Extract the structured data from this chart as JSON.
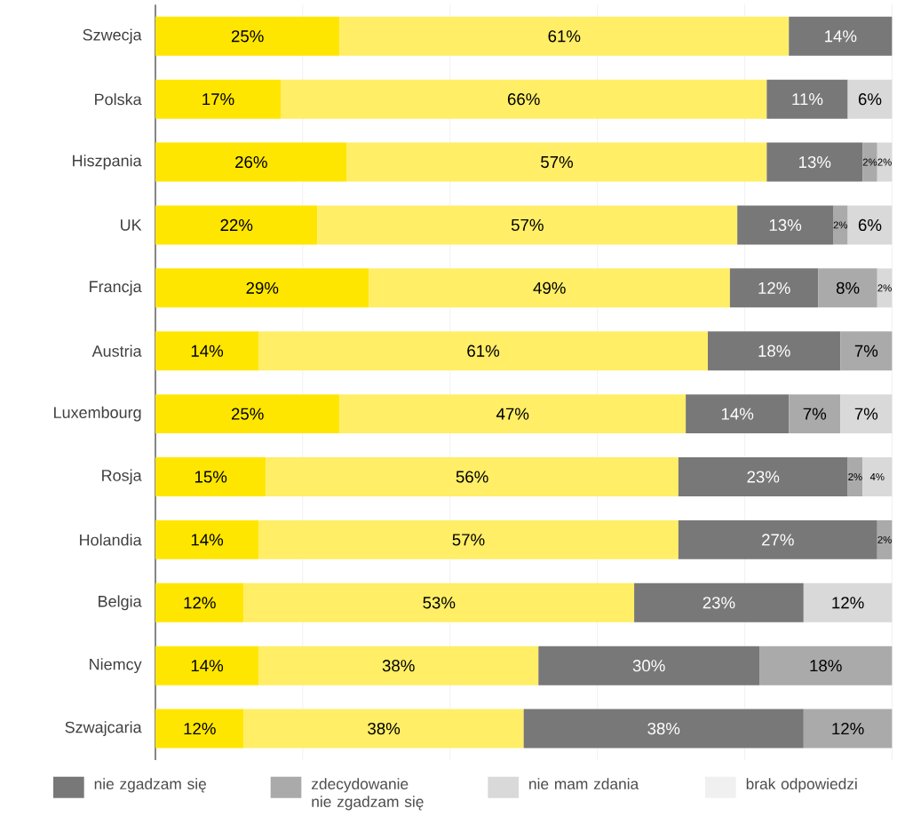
{
  "chart_data": {
    "type": "bar",
    "orientation": "horizontal",
    "stacked": true,
    "categories": [
      "Szwecja",
      "Polska",
      "Hiszpania",
      "UK",
      "Francja",
      "Austria",
      "Luxembourg",
      "Rosja",
      "Holandia",
      "Belgia",
      "Niemcy",
      "Szwajcaria"
    ],
    "series": [
      {
        "color": "#ffe600",
        "values": [
          25,
          17,
          26,
          22,
          29,
          14,
          25,
          15,
          14,
          12,
          14,
          12
        ],
        "value_labels": [
          "25%",
          "17%",
          "26%",
          "22%",
          "29%",
          "14%",
          "25%",
          "15%",
          "14%",
          "12%",
          "14%",
          "12%"
        ]
      },
      {
        "color": "#ffee66",
        "values": [
          61,
          66,
          57,
          57,
          49,
          61,
          47,
          56,
          57,
          53,
          38,
          38
        ],
        "value_labels": [
          "61%",
          "66%",
          "57%",
          "57%",
          "49%",
          "61%",
          "47%",
          "56%",
          "57%",
          "53%",
          "38%",
          "38%"
        ]
      },
      {
        "name": "nie zgadzam się",
        "color": "#787878",
        "values": [
          14,
          11,
          13,
          13,
          12,
          18,
          14,
          23,
          27,
          23,
          30,
          38
        ],
        "value_labels": [
          "14%",
          "11%",
          "13%",
          "13%",
          "12%",
          "18%",
          "14%",
          "23%",
          "27%",
          "23%",
          "30%",
          "38%"
        ]
      },
      {
        "name": "zdecydowanie nie zgadzam się",
        "color": "#aaaaaa",
        "values": [
          null,
          null,
          2,
          2,
          8,
          7,
          7,
          2,
          2,
          null,
          18,
          12
        ],
        "value_labels": [
          null,
          null,
          "2%",
          "2%",
          "8%",
          "7%",
          "7%",
          "2%",
          "2%",
          null,
          "18%",
          "12%"
        ]
      },
      {
        "name": "nie mam zdania",
        "color": "#d9d9d9",
        "values": [
          null,
          6,
          2,
          6,
          2,
          null,
          7,
          4,
          null,
          12,
          null,
          null
        ],
        "value_labels": [
          null,
          "6%",
          "2%",
          "6%",
          "2%",
          null,
          "7%",
          "4%",
          null,
          "12%",
          null,
          null
        ]
      },
      {
        "name": "brak odpowiedzi",
        "color": "#f0f0f0",
        "values": [
          null,
          null,
          null,
          null,
          null,
          null,
          null,
          null,
          null,
          null,
          null,
          null
        ]
      }
    ],
    "xlim": [
      0,
      100
    ],
    "xticks": [
      {
        "value": 0,
        "label": null
      },
      {
        "value": 20,
        "label": null
      },
      {
        "value": 40,
        "label": null
      },
      {
        "value": 60,
        "label": null
      },
      {
        "value": 80,
        "label": null
      },
      {
        "value": 100,
        "label": null
      }
    ],
    "grid": "x",
    "legend": "bottom",
    "tick_labels": "y"
  }
}
